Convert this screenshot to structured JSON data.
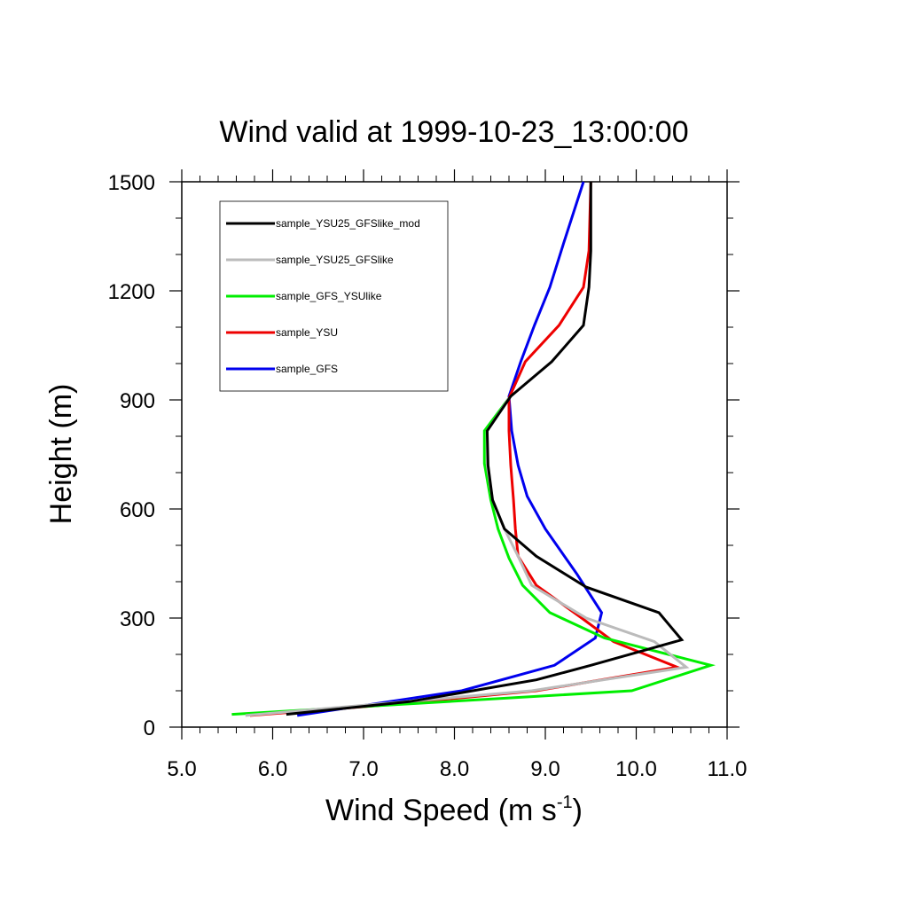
{
  "chart_data": {
    "type": "line",
    "title": "Wind valid at 1999-10-23_13:00:00",
    "xlabel": "Wind Speed (m s",
    "xlabel_superscript": "-1",
    "xlabel_suffix": ")",
    "ylabel": "Height (m)",
    "xlim": [
      5.0,
      11.0
    ],
    "ylim": [
      0,
      1500
    ],
    "x_ticks": [
      5.0,
      6.0,
      7.0,
      8.0,
      9.0,
      10.0,
      11.0
    ],
    "x_tick_labels": [
      "5.0",
      "6.0",
      "7.0",
      "8.0",
      "9.0",
      "10.0",
      "11.0"
    ],
    "y_ticks": [
      0,
      300,
      600,
      900,
      1200,
      1500
    ],
    "y_tick_labels": [
      "0",
      "300",
      "600",
      "900",
      "1200",
      "1500"
    ],
    "grid": false,
    "legend_position": "top-left",
    "series": [
      {
        "name": "sample_YSU25_GFSlike_mod",
        "color": "#000000",
        "points": [
          [
            6.15,
            35
          ],
          [
            7.5,
            70
          ],
          [
            8.9,
            130
          ],
          [
            9.5,
            170
          ],
          [
            10.5,
            240
          ],
          [
            10.25,
            315
          ],
          [
            9.45,
            385
          ],
          [
            8.9,
            470
          ],
          [
            8.55,
            545
          ],
          [
            8.42,
            625
          ],
          [
            8.37,
            720
          ],
          [
            8.36,
            815
          ],
          [
            8.62,
            910
          ],
          [
            9.07,
            1005
          ],
          [
            9.42,
            1105
          ],
          [
            9.48,
            1210
          ],
          [
            9.5,
            1310
          ],
          [
            9.5,
            1500
          ]
        ]
      },
      {
        "name": "sample_YSU25_GFSlike",
        "color": "#bbbbbb",
        "points": [
          [
            5.7,
            32
          ],
          [
            7.0,
            60
          ],
          [
            8.85,
            100
          ],
          [
            10.55,
            165
          ],
          [
            10.2,
            235
          ],
          [
            9.45,
            300
          ],
          [
            8.85,
            390
          ],
          [
            8.7,
            470
          ],
          [
            8.55,
            545
          ],
          [
            8.42,
            625
          ],
          [
            8.36,
            720
          ],
          [
            8.36,
            815
          ],
          [
            8.6,
            905
          ]
        ]
      },
      {
        "name": "sample_GFS_YSUlike",
        "color": "#00ee00",
        "points": [
          [
            5.55,
            35
          ],
          [
            9.95,
            100
          ],
          [
            10.82,
            170
          ],
          [
            9.65,
            245
          ],
          [
            9.05,
            315
          ],
          [
            8.75,
            390
          ],
          [
            8.6,
            465
          ],
          [
            8.48,
            545
          ],
          [
            8.4,
            625
          ],
          [
            8.33,
            725
          ],
          [
            8.33,
            815
          ],
          [
            8.6,
            905
          ]
        ]
      },
      {
        "name": "sample_YSU",
        "color": "#ee0000",
        "points": [
          [
            5.75,
            32
          ],
          [
            7.2,
            60
          ],
          [
            8.9,
            100
          ],
          [
            10.45,
            165
          ],
          [
            9.75,
            235
          ],
          [
            9.4,
            300
          ],
          [
            8.9,
            390
          ],
          [
            8.7,
            470
          ],
          [
            8.67,
            545
          ],
          [
            8.65,
            625
          ],
          [
            8.62,
            720
          ],
          [
            8.6,
            815
          ],
          [
            8.6,
            905
          ],
          [
            8.78,
            1005
          ],
          [
            9.15,
            1105
          ],
          [
            9.42,
            1210
          ],
          [
            9.48,
            1310
          ],
          [
            9.5,
            1500
          ]
        ]
      },
      {
        "name": "sample_GFS",
        "color": "#0000ee",
        "points": [
          [
            6.27,
            32
          ],
          [
            8.08,
            100
          ],
          [
            9.1,
            170
          ],
          [
            9.55,
            245
          ],
          [
            9.62,
            315
          ],
          [
            9.35,
            420
          ],
          [
            9.0,
            545
          ],
          [
            8.8,
            635
          ],
          [
            8.7,
            720
          ],
          [
            8.63,
            815
          ],
          [
            8.6,
            910
          ],
          [
            8.73,
            1005
          ],
          [
            8.88,
            1105
          ],
          [
            9.05,
            1210
          ],
          [
            9.2,
            1330
          ],
          [
            9.42,
            1500
          ]
        ]
      }
    ]
  }
}
